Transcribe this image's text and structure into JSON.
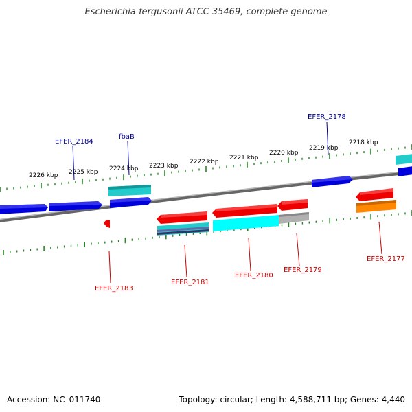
{
  "title": "Escherichia fergusonii ATCC 35469, complete genome",
  "footer": {
    "accession": "Accession: NC_011740",
    "summary": "Topology: circular; Length: 4,588,711 bp; Genes: 4,440"
  },
  "colors": {
    "forward_gene": "#0000dd",
    "reverse_gene": "#ee0000",
    "cyan_feature": "#22cccc",
    "orange_feature": "#ff8800",
    "grey_feature": "#aaaaaa",
    "backbone": "#777777",
    "tick": "#228822",
    "forward_label": "#000099",
    "reverse_label": "#cc0000"
  },
  "scale_ticks": [
    "2226 kbp",
    "2225 kbp",
    "2224 kbp",
    "2223 kbp",
    "2222 kbp",
    "2221 kbp",
    "2220 kbp",
    "2219 kbp",
    "2218 kbp"
  ],
  "gene_labels": {
    "forward": [
      "EFER_2184",
      "fbaB",
      "EFER_2178"
    ],
    "reverse": [
      "EFER_2183",
      "EFER_2181",
      "EFER_2180",
      "EFER_2179",
      "EFER_2177"
    ]
  }
}
